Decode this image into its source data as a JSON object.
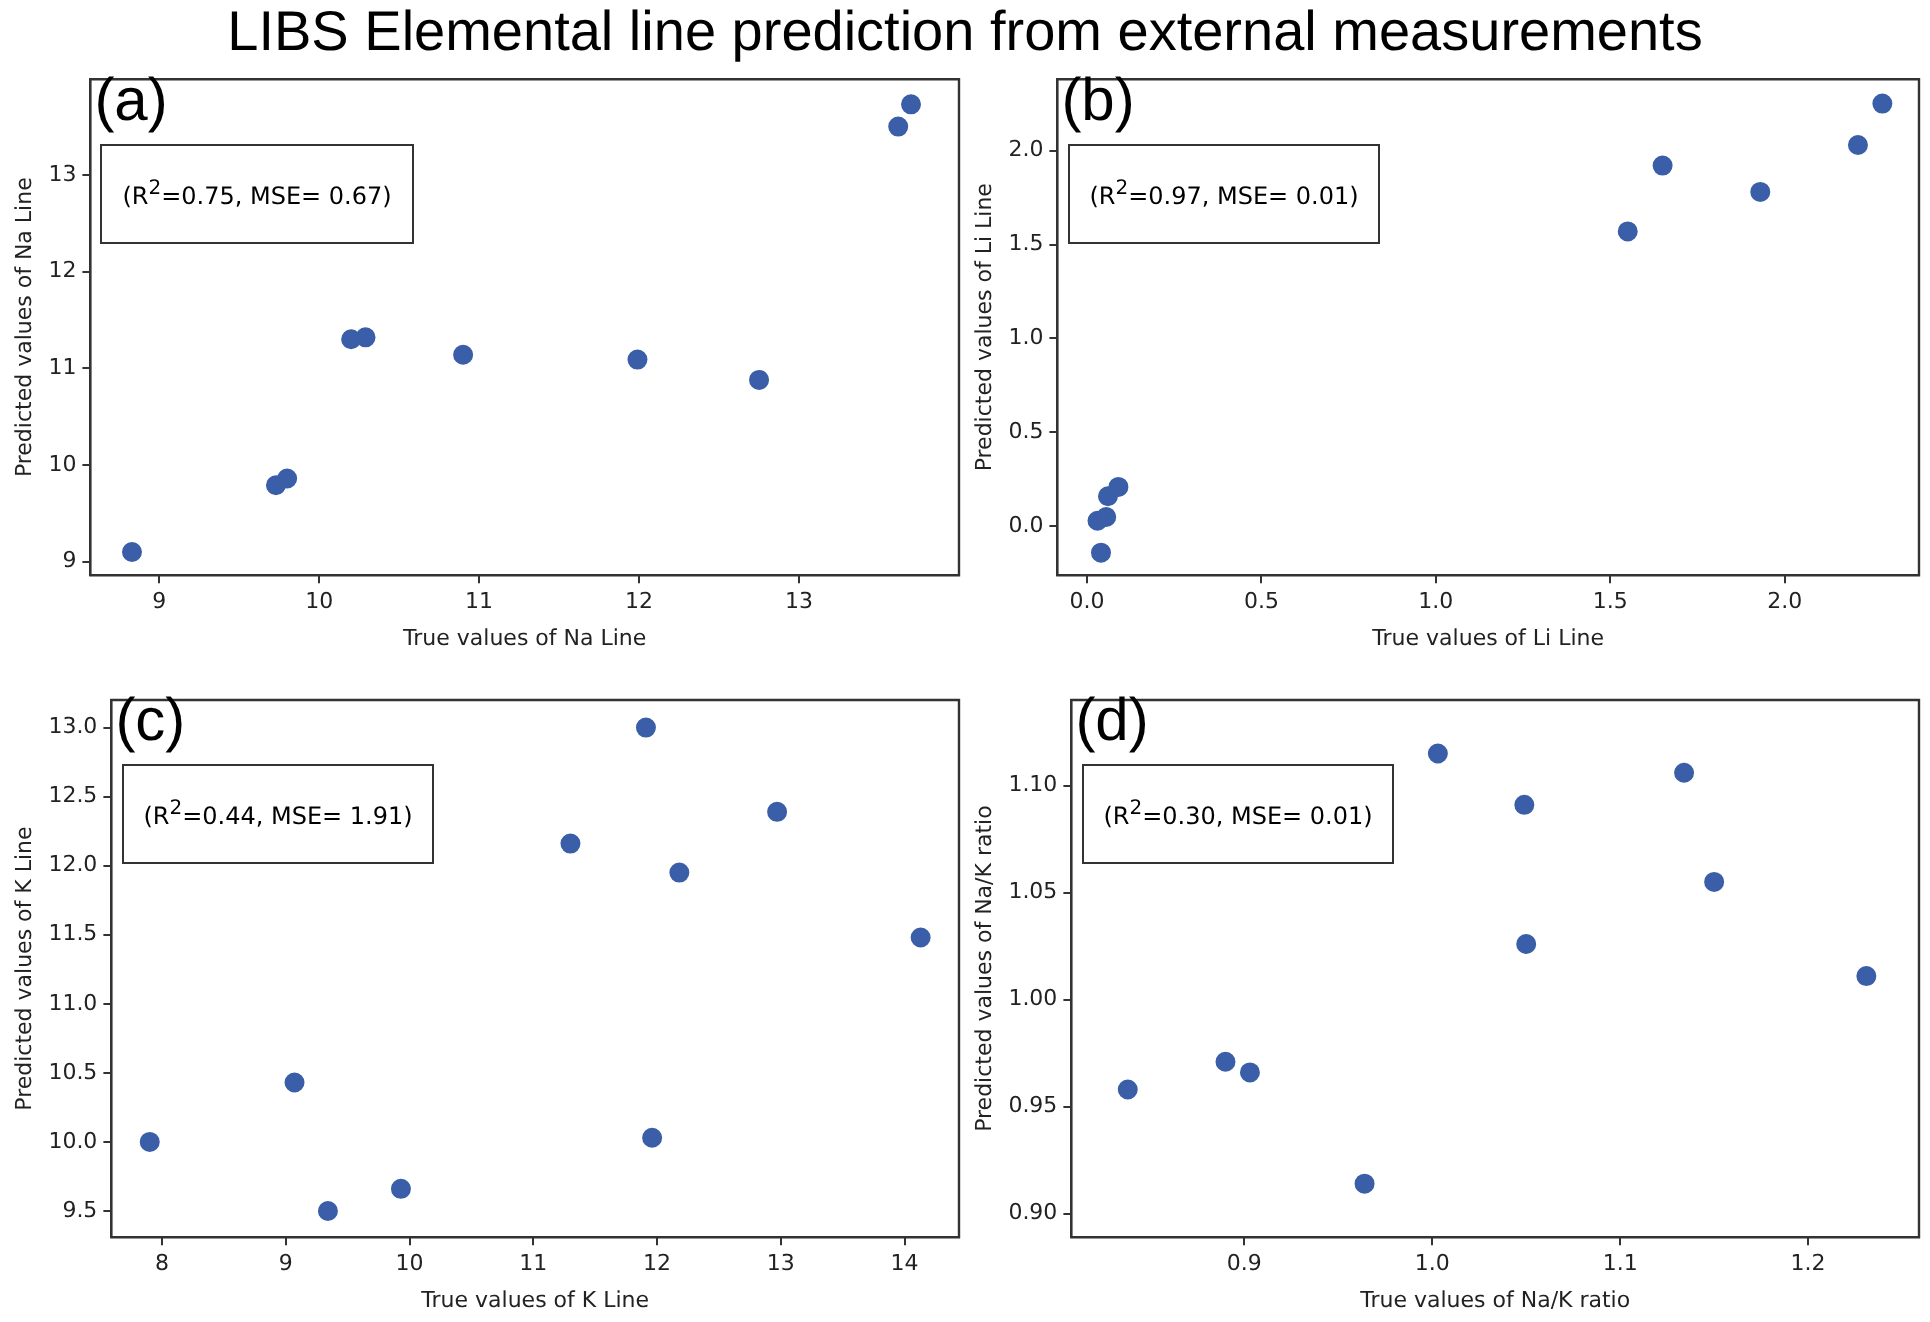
{
  "chart_data": [
    {
      "type": "scatter",
      "title": "LIBS Elemental line prediction from external measurements",
      "xlabel": "True values of Na Line",
      "ylabel": "Predicted values of Na Line",
      "annotations": [
        "(a)",
        "(R$^{2}$=0.75, MSE= 0.67)"
      ],
      "x": [
        8.83,
        9.73,
        9.8,
        10.2,
        10.29,
        10.9,
        11.99,
        12.75,
        13.62,
        13.7
      ],
      "values": [
        9.1,
        9.79,
        9.86,
        11.3,
        11.32,
        11.14,
        11.09,
        10.88,
        13.5,
        13.73
      ],
      "color": "#3a5ea8",
      "xlim": [
        8.57,
        14.0
      ],
      "xticks": [
        9,
        10,
        11,
        12,
        13
      ],
      "ylim": [
        8.86,
        13.99
      ],
      "yticks": [
        9,
        10,
        11,
        12,
        13
      ],
      "grid": false,
      "legend": false,
      "marker": "circle"
    },
    {
      "type": "scatter",
      "xlabel": "True values of Li Line",
      "ylabel": "Predicted values of Li Line",
      "annotations": [
        "(b)",
        "(R$^{2}$=0.97, MSE= 0.01)"
      ],
      "x": [
        0.04,
        0.03,
        0.055,
        0.06,
        0.09,
        1.55,
        1.65,
        1.93,
        2.21,
        2.28
      ],
      "values": [
        -0.14,
        0.03,
        0.05,
        0.16,
        0.21,
        1.57,
        1.92,
        1.78,
        2.03,
        2.25
      ],
      "color": "#3a5ea8",
      "xlim": [
        -0.085,
        2.385
      ],
      "xticks": [
        {
          "value": 0,
          "label": "0.0"
        },
        0.5,
        {
          "value": 1,
          "label": "1.0"
        },
        1.5,
        {
          "value": 2,
          "label": "2.0"
        }
      ],
      "ylim": [
        -0.26,
        2.38
      ],
      "yticks": [
        {
          "value": 0,
          "label": "0.0"
        },
        0.5,
        {
          "value": 1,
          "label": "1.0"
        },
        1.5,
        {
          "value": 2,
          "label": "2.0"
        }
      ],
      "grid": false,
      "legend": false,
      "marker": "circle"
    },
    {
      "type": "scatter",
      "xlabel": "True values of K Line",
      "ylabel": "Predicted values of K Line",
      "annotations": [
        "(c)",
        "(R$^{2}$=0.44, MSE= 1.91)"
      ],
      "x": [
        7.9,
        9.07,
        9.34,
        9.93,
        11.3,
        11.91,
        11.96,
        12.18,
        12.97,
        14.13
      ],
      "values": [
        10.0,
        10.43,
        9.5,
        9.66,
        12.16,
        13.0,
        10.03,
        11.95,
        12.39,
        11.48
      ],
      "color": "#3a5ea8",
      "xlim": [
        7.59,
        14.44
      ],
      "xticks": [
        8,
        9,
        10,
        11,
        12,
        13,
        14
      ],
      "ylim": [
        9.31,
        13.2
      ],
      "yticks": [
        9.5,
        {
          "value": 10,
          "label": "10.0"
        },
        10.5,
        {
          "value": 11,
          "label": "11.0"
        },
        11.5,
        {
          "value": 12,
          "label": "12.0"
        },
        12.5,
        {
          "value": 13,
          "label": "13.0"
        }
      ],
      "grid": false,
      "legend": false,
      "marker": "circle"
    },
    {
      "type": "scatter",
      "xlabel": "True values of Na/K ratio",
      "ylabel": "Predicted values of Na/K ratio",
      "annotations": [
        "(d)",
        "(R$^{2}$=0.30, MSE= 0.01)"
      ],
      "x": [
        0.838,
        0.89,
        0.903,
        0.964,
        1.003,
        1.049,
        1.05,
        1.134,
        1.15,
        1.231
      ],
      "values": [
        0.958,
        0.971,
        0.966,
        0.914,
        1.115,
        1.091,
        1.026,
        1.106,
        1.055,
        1.011
      ],
      "color": "#3a5ea8",
      "xlim": [
        0.808,
        1.259
      ],
      "xticks": [
        0.9,
        {
          "value": 1,
          "label": "1.0"
        },
        1.1,
        1.2
      ],
      "ylim": [
        0.889,
        1.14
      ],
      "yticks": [
        {
          "value": 0.9,
          "label": "0.90"
        },
        0.95,
        {
          "value": 1,
          "label": "1.00"
        },
        1.05,
        {
          "value": 1.1,
          "label": "1.10"
        }
      ],
      "grid": false,
      "legend": false,
      "marker": "circle"
    }
  ]
}
